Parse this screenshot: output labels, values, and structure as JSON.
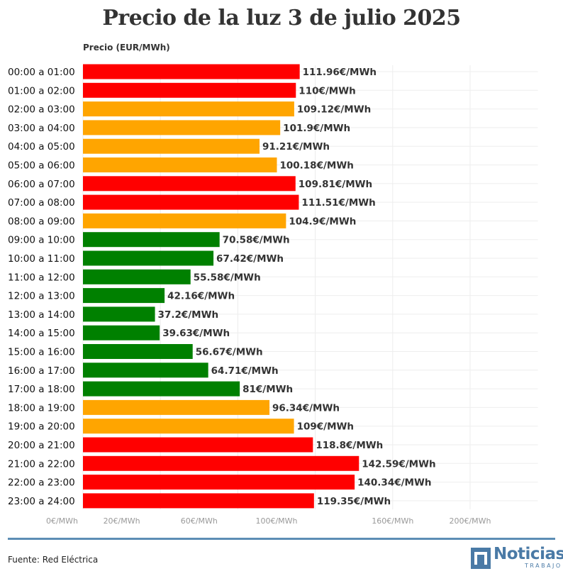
{
  "title": "Precio de la luz 3 de julio 2025",
  "source": "Fuente: Red Eléctrica",
  "logo": {
    "word": "Noticias",
    "sub": "TRABAJO"
  },
  "colors": {
    "high": "#ff0000",
    "medium": "#ffa500",
    "low": "#008000"
  },
  "chart_data": {
    "type": "bar",
    "orientation": "horizontal",
    "title": "Precio de la luz 3 de julio 2025",
    "xlabel": "Precio (EUR/MWh)",
    "xlim": [
      0,
      235
    ],
    "grid": true,
    "value_suffix": "€/MWh",
    "x_ticks": [
      {
        "value": 0,
        "label": "0€/MWh"
      },
      {
        "value": 20,
        "label": "20€/MWh"
      },
      {
        "value": 60,
        "label": "60€/MWh"
      },
      {
        "value": 100,
        "label": "100€/MWh"
      },
      {
        "value": 160,
        "label": "160€/MWh"
      },
      {
        "value": 200,
        "label": "200€/MWh"
      }
    ],
    "categories": [
      "00:00 a 01:00",
      "01:00 a 02:00",
      "02:00 a 03:00",
      "03:00 a 04:00",
      "04:00 a 05:00",
      "05:00 a 06:00",
      "06:00 a 07:00",
      "07:00 a 08:00",
      "08:00 a 09:00",
      "09:00 a 10:00",
      "10:00 a 11:00",
      "11:00 a 12:00",
      "12:00 a 13:00",
      "13:00 a 14:00",
      "14:00 a 15:00",
      "15:00 a 16:00",
      "16:00 a 17:00",
      "17:00 a 18:00",
      "18:00 a 19:00",
      "19:00 a 20:00",
      "20:00 a 21:00",
      "21:00 a 22:00",
      "22:00 a 23:00",
      "23:00 a 24:00"
    ],
    "values": [
      111.96,
      110,
      109.12,
      101.9,
      91.21,
      100.18,
      109.81,
      111.51,
      104.9,
      70.58,
      67.42,
      55.58,
      42.16,
      37.2,
      39.63,
      56.67,
      64.71,
      81,
      96.34,
      109,
      118.8,
      142.59,
      140.34,
      119.35
    ],
    "value_labels": [
      "111.96€/MWh",
      "110€/MWh",
      "109.12€/MWh",
      "101.9€/MWh",
      "91.21€/MWh",
      "100.18€/MWh",
      "109.81€/MWh",
      "111.51€/MWh",
      "104.9€/MWh",
      "70.58€/MWh",
      "67.42€/MWh",
      "55.58€/MWh",
      "42.16€/MWh",
      "37.2€/MWh",
      "39.63€/MWh",
      "56.67€/MWh",
      "64.71€/MWh",
      "81€/MWh",
      "96.34€/MWh",
      "109€/MWh",
      "118.8€/MWh",
      "142.59€/MWh",
      "140.34€/MWh",
      "119.35€/MWh"
    ],
    "levels": [
      "high",
      "high",
      "medium",
      "medium",
      "medium",
      "medium",
      "high",
      "high",
      "medium",
      "low",
      "low",
      "low",
      "low",
      "low",
      "low",
      "low",
      "low",
      "low",
      "medium",
      "medium",
      "high",
      "high",
      "high",
      "high"
    ]
  }
}
